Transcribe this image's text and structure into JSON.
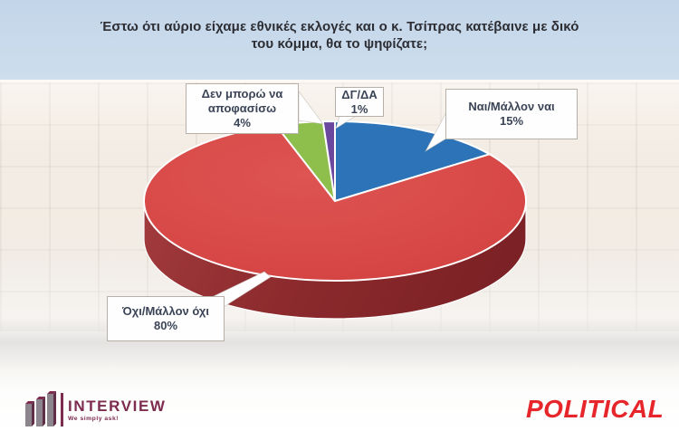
{
  "title": {
    "line1": "Έστω ότι αύριο είχαμε εθνικές εκλογές και ο κ. Τσίπρας κατέβαινε με δικό",
    "line2": "του κόμμα, θα το ψηφίζατε;"
  },
  "chart_data": {
    "type": "pie",
    "style": "3d-pie-with-callout-labels",
    "title": "Έστω ότι αύριο είχαμε εθνικές εκλογές και ο κ. Τσίπρας κατέβαινε με δικό του κόμμα, θα το ψηφίζατε;",
    "unit": "%",
    "direction": "clockwise",
    "start_angle_deg": 0,
    "legend": "none",
    "segments_clockwise_from_top": [
      {
        "id": "yes",
        "label": "Ναι/Μάλλον ναι",
        "value": 15,
        "color": "#2c73b8"
      },
      {
        "id": "no",
        "label": "Όχι/Μάλλον όχι",
        "value": 80,
        "color": "#d84a48"
      },
      {
        "id": "dont_know",
        "label": "Δεν μπορώ να αποφασίσω",
        "value": 4,
        "color": "#8ebe4c"
      },
      {
        "id": "dk_na",
        "label": "ΔΓ/ΔΑ",
        "value": 1,
        "color": "#69489e"
      }
    ]
  },
  "callouts": {
    "dont_know": {
      "label": "Δεν μπορώ να αποφασίσω",
      "value": "4%"
    },
    "dk_na": {
      "label": "ΔΓ/ΔΑ",
      "value": "1%"
    },
    "yes": {
      "label": "Ναι/Μάλλον ναι",
      "value": "15%"
    },
    "no": {
      "label": "Όχι/Μάλλον όχι",
      "value": "80%"
    }
  },
  "footer": {
    "interview": {
      "name": "INTERVIEW",
      "tagline": "We simply ask!",
      "color": "#7d2b4e",
      "icon": "bar-chart-icon"
    },
    "political": {
      "name": "POLITICAL",
      "color": "#e6262a"
    }
  }
}
